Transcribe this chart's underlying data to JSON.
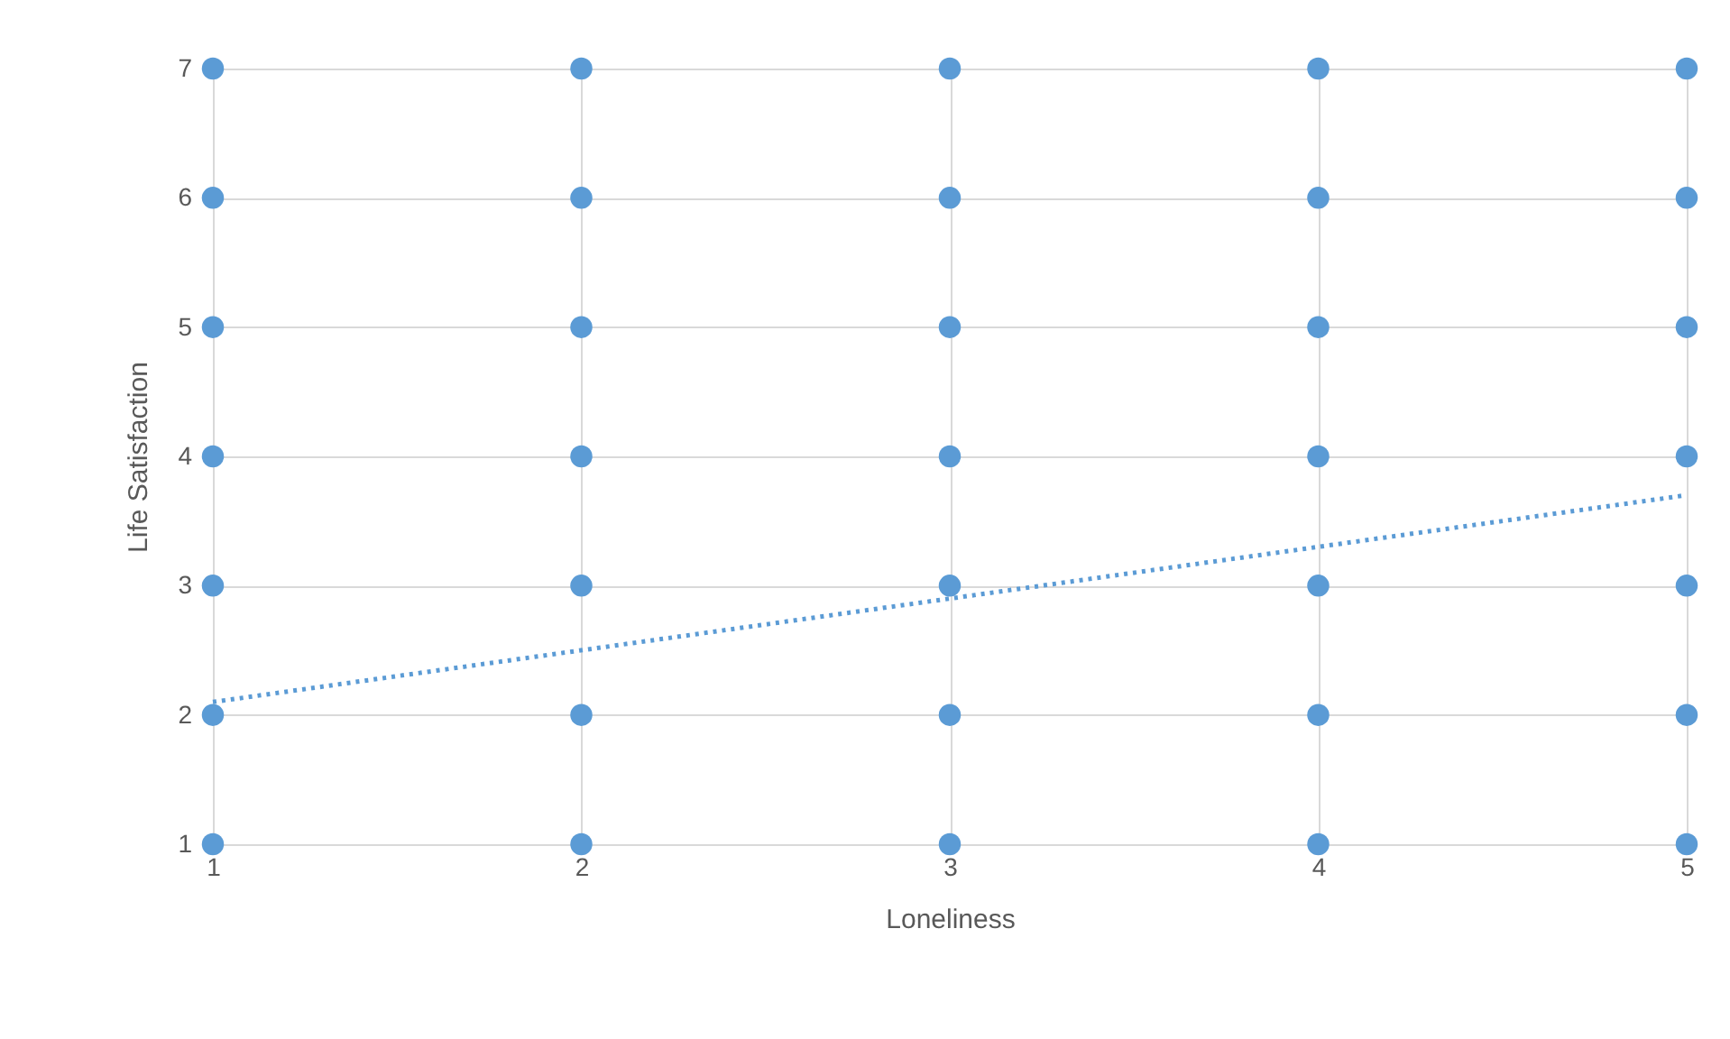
{
  "chart_data": {
    "type": "scatter",
    "xlabel": "Loneliness",
    "ylabel": "Life Satisfaction",
    "xlim": [
      1,
      5
    ],
    "xticks": [
      1,
      2,
      3,
      4,
      5
    ],
    "ylim": [
      1,
      7
    ],
    "yticks": [
      1,
      2,
      3,
      4,
      5,
      6,
      7
    ],
    "grid": true,
    "marker": "circle",
    "series": [
      {
        "color": "#5b9bd5",
        "x": [
          1,
          1,
          1,
          1,
          1,
          1,
          1,
          2,
          2,
          2,
          2,
          2,
          2,
          2,
          3,
          3,
          3,
          3,
          3,
          3,
          3,
          4,
          4,
          4,
          4,
          4,
          4,
          4,
          5,
          5,
          5,
          5,
          5,
          5,
          5
        ],
        "values": [
          1,
          2,
          3,
          4,
          5,
          6,
          7,
          1,
          2,
          3,
          4,
          5,
          6,
          7,
          1,
          2,
          3,
          4,
          5,
          6,
          7,
          1,
          2,
          3,
          4,
          5,
          6,
          7,
          1,
          2,
          3,
          4,
          5,
          6,
          7
        ]
      },
      {
        "type": "line",
        "color": "#5b9bd5",
        "line_style": "dotted",
        "marker": "none",
        "x": [
          1,
          5
        ],
        "values": [
          2.1,
          3.7
        ]
      }
    ]
  }
}
